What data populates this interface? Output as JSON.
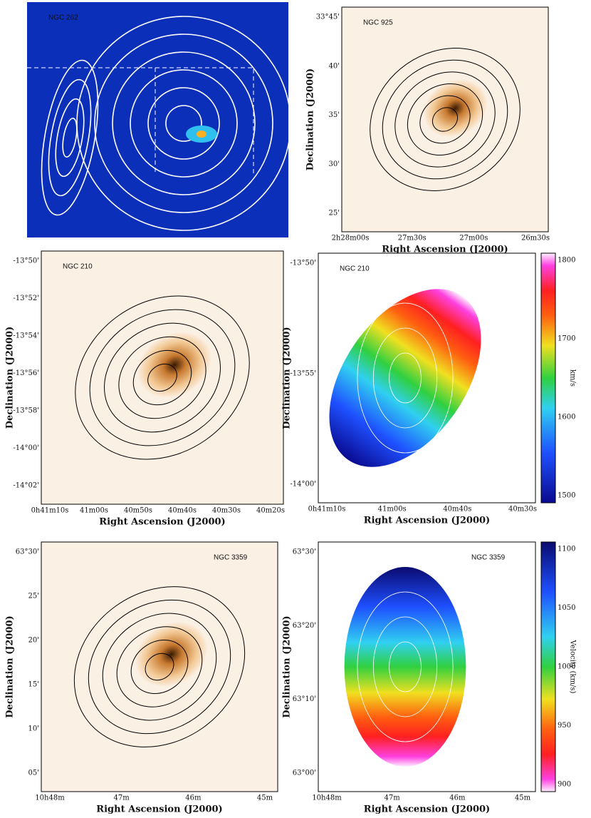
{
  "panels": [
    {
      "label": "NGC 262"
    },
    {
      "label": "NGC 925",
      "xlabel": "Right Ascension (J2000)",
      "ylabel": "Declination (J2000)",
      "xticks": [
        "2h28m00s",
        "27m30s",
        "27m00s",
        "26m30s"
      ],
      "yticks": [
        "33°45'",
        "40'",
        "35'",
        "30'",
        "25'"
      ]
    },
    {
      "label": "NGC 210",
      "xlabel": "Right Ascension (J2000)",
      "ylabel": "Declination (J2000)",
      "xticks": [
        "0h41m10s",
        "41m00s",
        "40m50s",
        "40m40s",
        "40m30s",
        "40m20s"
      ],
      "yticks": [
        "-13°50'",
        "-13°52'",
        "-13°54'",
        "-13°56'",
        "-13°58'",
        "-14°00'",
        "-14°02'"
      ]
    },
    {
      "label": "NGC 210",
      "xlabel": "Right Ascension (J2000)",
      "ylabel": "Declination (J2000)",
      "xticks": [
        "0h41m10s",
        "41m00s",
        "40m40s",
        "40m30s"
      ],
      "yticks": [
        "-13°50'",
        "-13°55'",
        "-14°00'"
      ],
      "colorbar": {
        "label": "km/s",
        "ticks": [
          "1800",
          "1700",
          "1600",
          "1500"
        ]
      }
    },
    {
      "label": "NGC 3359",
      "xlabel": "Right Ascension (J2000)",
      "ylabel": "Declination (J2000)",
      "xticks": [
        "10h48m",
        "47m",
        "46m",
        "45m"
      ],
      "yticks": [
        "63°30'",
        "25'",
        "20'",
        "15'",
        "10'",
        "05'"
      ]
    },
    {
      "label": "NGC 3359",
      "xlabel": "Right Ascension (J2000)",
      "ylabel": "Declination (J2000)",
      "xticks": [
        "10h48m",
        "47m",
        "46m",
        "45m"
      ],
      "yticks": [
        "63°30'",
        "63°20'",
        "63°10'",
        "63°00'"
      ],
      "colorbar": {
        "label": "Velocity (km/s)",
        "ticks": [
          "1100",
          "1050",
          "1000",
          "950",
          "900"
        ]
      }
    }
  ]
}
